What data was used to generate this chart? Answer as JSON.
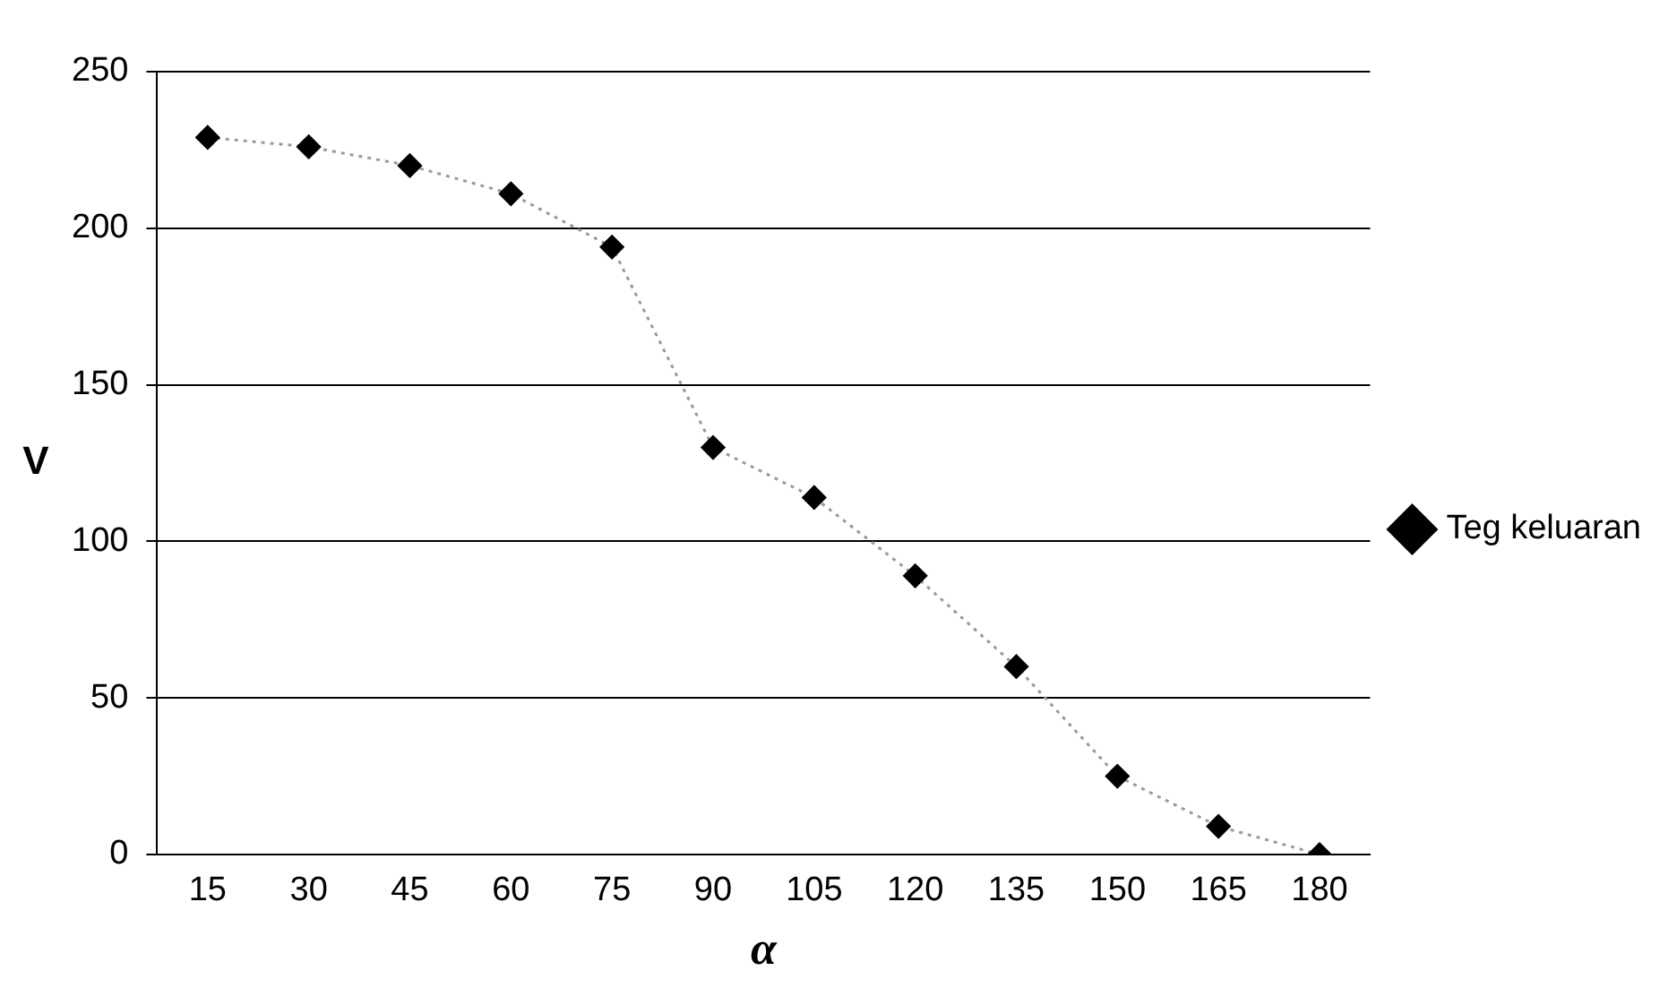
{
  "chart_data": {
    "type": "line",
    "xlabel": "α",
    "ylabel": "V",
    "categories": [
      "15",
      "30",
      "45",
      "60",
      "75",
      "90",
      "105",
      "120",
      "135",
      "150",
      "165",
      "180"
    ],
    "series": [
      {
        "name": "Teg keluaran",
        "color": "#000000",
        "values": [
          229,
          226,
          220,
          211,
          194,
          130,
          114,
          89,
          60,
          25,
          9,
          0
        ]
      }
    ],
    "ylim": [
      0,
      250
    ],
    "yticks": [
      0,
      50,
      100,
      150,
      200,
      250
    ],
    "grid": "y",
    "legend": "right",
    "marker": "diamond",
    "line_style": "dotted"
  }
}
